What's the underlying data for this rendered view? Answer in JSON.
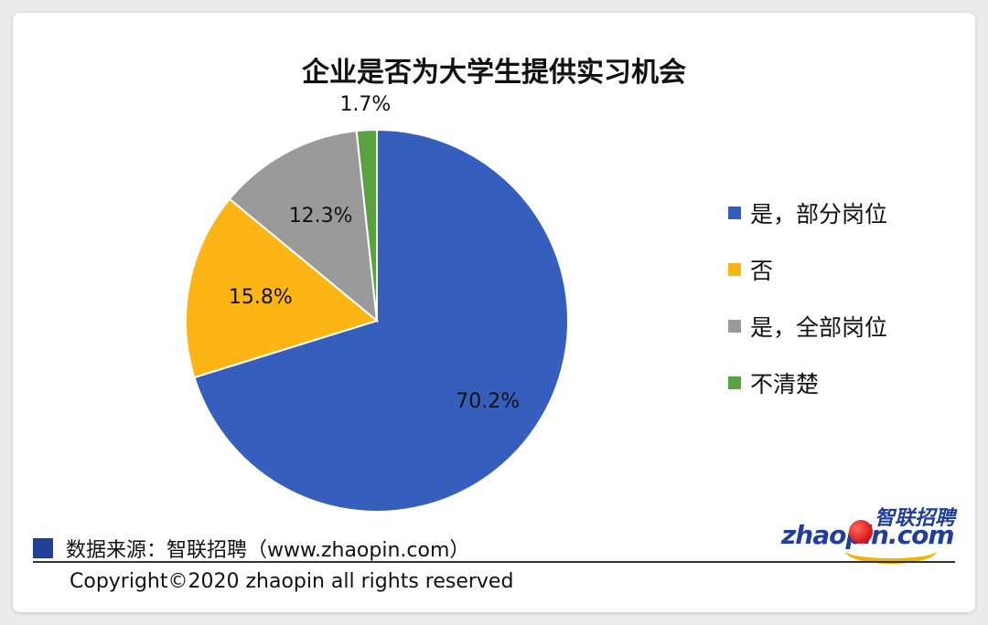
{
  "chart_data": {
    "type": "pie",
    "title": "企业是否为大学生提供实习机会",
    "slices": [
      {
        "label": "是，部分岗位",
        "value": 70.2,
        "display": "70.2%",
        "color": "#355ebd"
      },
      {
        "label": "否",
        "value": 15.8,
        "display": "15.8%",
        "color": "#fcb514"
      },
      {
        "label": "是，全部岗位",
        "value": 12.3,
        "display": "12.3%",
        "color": "#9a9a9a"
      },
      {
        "label": "不清楚",
        "value": 1.7,
        "display": "1.7%",
        "color": "#5aa240"
      }
    ],
    "legend_position": "right"
  },
  "footer": {
    "source": "数据来源：智联招聘（www.zhaopin.com）",
    "copyright": "Copyright©2020 zhaopin all rights reserved",
    "source_swatch_color": "#1f3f99"
  },
  "logo": {
    "text_cn": "智联招聘",
    "text_en": "zhaopin.com"
  }
}
